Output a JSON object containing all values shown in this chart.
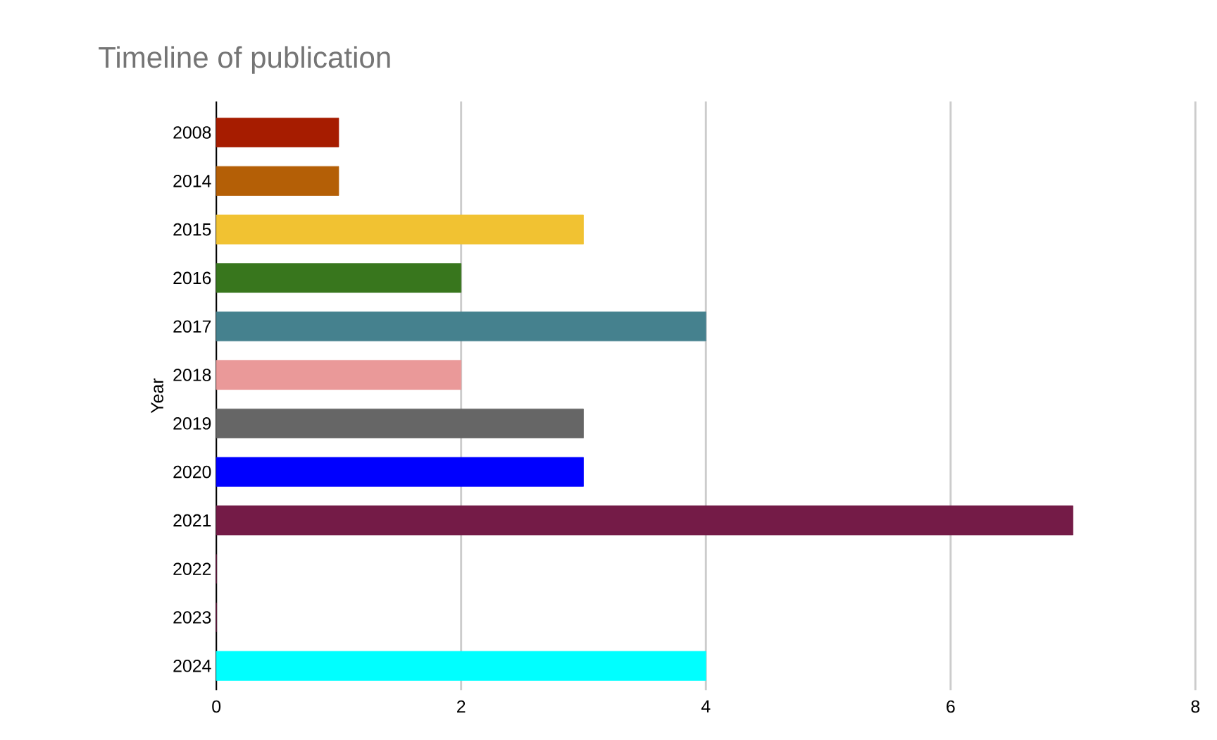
{
  "chart_data": {
    "type": "bar",
    "orientation": "horizontal",
    "title": "Timeline of publication",
    "ylabel": "Year",
    "categories": [
      "2008",
      "2014",
      "2015",
      "2016",
      "2017",
      "2018",
      "2019",
      "2020",
      "2021",
      "2022",
      "2023",
      "2024"
    ],
    "values": [
      1,
      1,
      3,
      2,
      4,
      2,
      3,
      3,
      7,
      0,
      0,
      4
    ],
    "colors": [
      "#a61c00",
      "#b45f06",
      "#f1c232",
      "#38761d",
      "#45818e",
      "#ea9999",
      "#666666",
      "#0000ff",
      "#741b47",
      "#741b47",
      "#741b47",
      "#00ffff"
    ],
    "xlim": [
      0,
      8
    ],
    "xticks": [
      0,
      2,
      4,
      6,
      8
    ],
    "grid": "x"
  }
}
